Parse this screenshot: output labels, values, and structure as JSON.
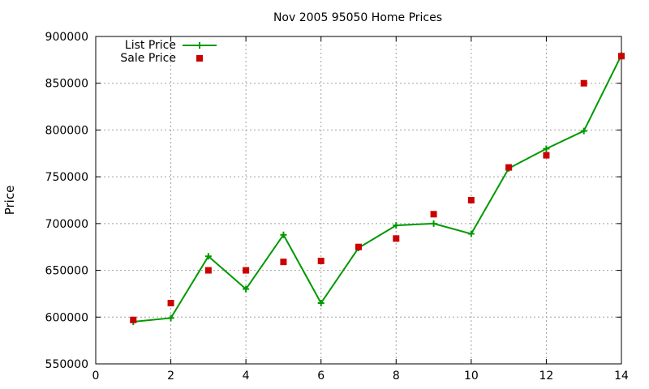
{
  "chart_data": {
    "type": "line",
    "title": "Nov 2005 95050 Home Prices",
    "xlabel": "",
    "ylabel": "Price",
    "xlim": [
      0,
      14
    ],
    "ylim": [
      550000,
      900000
    ],
    "x_ticks": [
      0,
      2,
      4,
      6,
      8,
      10,
      12,
      14
    ],
    "y_ticks": [
      550000,
      600000,
      650000,
      700000,
      750000,
      800000,
      850000,
      900000
    ],
    "grid": true,
    "legend_position": "top-left",
    "series": [
      {
        "name": "List Price",
        "style": "line with plus markers",
        "color": "#009900",
        "x": [
          1,
          2,
          3,
          4,
          5,
          6,
          7,
          8,
          9,
          10,
          11,
          12,
          13,
          14
        ],
        "y": [
          595000,
          599000,
          665000,
          630000,
          688000,
          615000,
          674000,
          698000,
          700000,
          689000,
          759000,
          780000,
          799000,
          880000
        ]
      },
      {
        "name": "Sale Price",
        "style": "square points",
        "color": "#cc0000",
        "x": [
          1,
          2,
          3,
          4,
          5,
          6,
          7,
          8,
          9,
          10,
          11,
          12,
          13,
          14
        ],
        "y": [
          597000,
          615000,
          650000,
          650000,
          659000,
          660000,
          675000,
          684000,
          710000,
          725000,
          760000,
          773000,
          850000,
          879000
        ]
      }
    ]
  }
}
